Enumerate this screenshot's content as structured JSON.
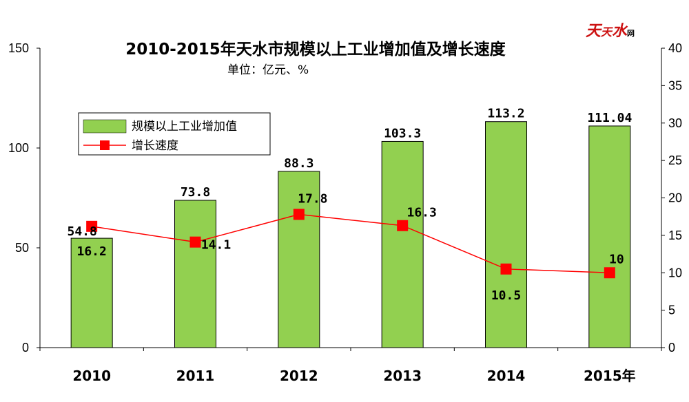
{
  "chart_data": {
    "type": "bar",
    "title": "2010-2015年天水市规模以上工业增加值及增长速度",
    "subtitle": "单位：亿元、%",
    "categories": [
      "2010",
      "2011",
      "2012",
      "2013",
      "2014",
      "2015年"
    ],
    "series": [
      {
        "name": "规模以上工业增加值",
        "type": "bar",
        "axis": "left",
        "color": "#92d050",
        "values": [
          54.8,
          73.8,
          88.3,
          103.3,
          113.2,
          111.04
        ],
        "labels": [
          "54.8",
          "73.8",
          "88.3",
          "103.3",
          "113.2",
          "111.04"
        ]
      },
      {
        "name": "增长速度",
        "type": "line",
        "axis": "right",
        "color": "#ff0000",
        "values": [
          16.2,
          14.1,
          17.8,
          16.3,
          10.5,
          10
        ],
        "labels": [
          "16.2",
          "14.1",
          "17.8",
          "16.3",
          "10.5",
          "10"
        ]
      }
    ],
    "y_left": {
      "lim": [
        0,
        150
      ],
      "ticks": [
        "0",
        "50",
        "100",
        "150"
      ]
    },
    "y_right": {
      "lim": [
        0,
        40
      ],
      "ticks": [
        "0",
        "5",
        "10",
        "15",
        "20",
        "25",
        "30",
        "35",
        "40"
      ]
    },
    "grid": false,
    "legend": "upper-left"
  },
  "logo": {
    "text": "天天水网"
  }
}
